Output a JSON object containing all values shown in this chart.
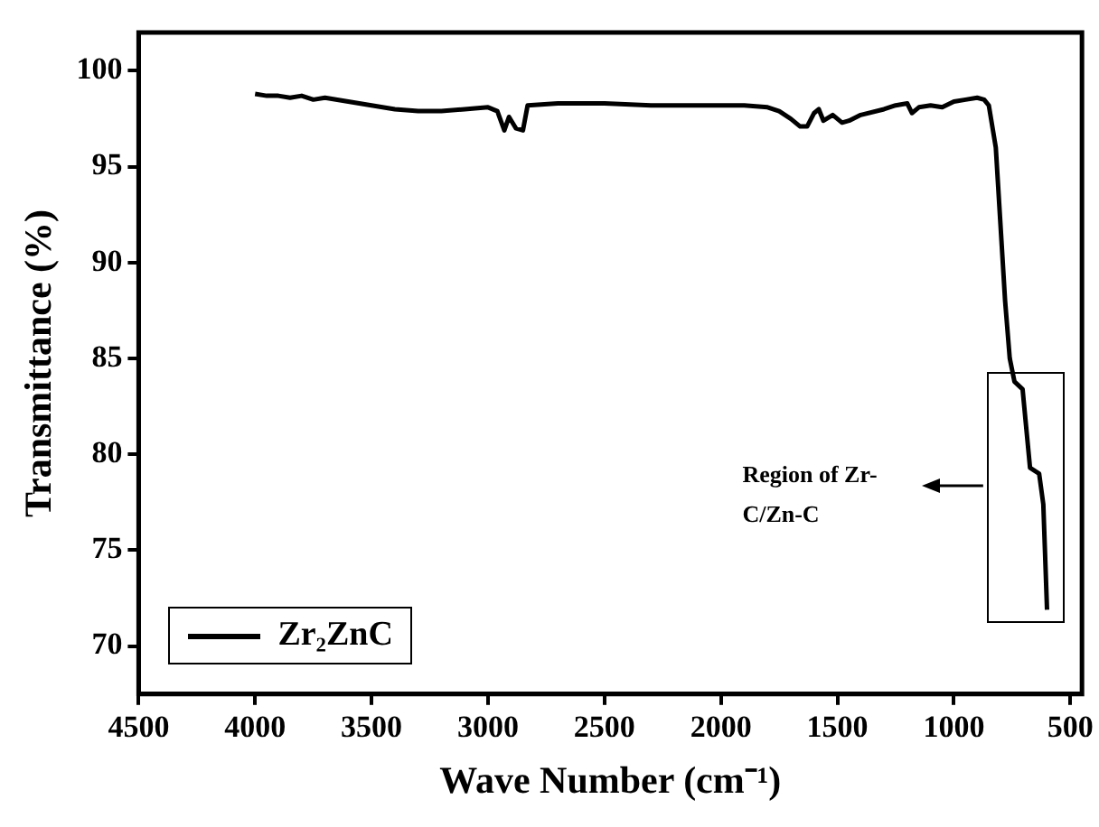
{
  "chart_data": {
    "type": "line",
    "xlabel": "Wave Number (cm⁻¹)",
    "ylabel": "Transmittance (%)",
    "xlim": [
      4500,
      450
    ],
    "xticks": [
      4500,
      4000,
      3500,
      3000,
      2500,
      2000,
      1500,
      1000,
      500
    ],
    "ylim": [
      67.5,
      102
    ],
    "yticks": [
      70,
      75,
      80,
      85,
      90,
      95,
      100
    ],
    "grid": false,
    "legend": "bottom left",
    "marker": "none",
    "line_style": "solid",
    "annotations": [
      "Region of Zr-C/Zn-C"
    ],
    "series": [
      {
        "name": "Zr₂ZnC",
        "color": "#000000",
        "x": [
          4000,
          3950,
          3900,
          3850,
          3800,
          3750,
          3700,
          3600,
          3500,
          3400,
          3300,
          3200,
          3100,
          3000,
          2960,
          2930,
          2910,
          2880,
          2850,
          2830,
          2700,
          2500,
          2300,
          2100,
          1900,
          1800,
          1750,
          1700,
          1660,
          1630,
          1600,
          1580,
          1560,
          1520,
          1480,
          1450,
          1400,
          1300,
          1250,
          1200,
          1180,
          1150,
          1100,
          1050,
          1000,
          950,
          900,
          870,
          850,
          820,
          800,
          780,
          760,
          740,
          705,
          673,
          634,
          616,
          600
        ],
        "values": [
          98.8,
          98.7,
          98.7,
          98.6,
          98.7,
          98.5,
          98.6,
          98.4,
          98.2,
          98.0,
          97.9,
          97.9,
          98.0,
          98.1,
          97.9,
          96.9,
          97.6,
          97.0,
          96.9,
          98.2,
          98.3,
          98.3,
          98.2,
          98.2,
          98.2,
          98.1,
          97.9,
          97.5,
          97.1,
          97.1,
          97.8,
          98.0,
          97.4,
          97.7,
          97.3,
          97.4,
          97.7,
          98.0,
          98.2,
          98.3,
          97.8,
          98.1,
          98.2,
          98.1,
          98.4,
          98.5,
          98.6,
          98.5,
          98.2,
          96.0,
          92.0,
          88.0,
          85.0,
          83.8,
          83.4,
          79.3,
          79.0,
          77.4,
          71.9
        ]
      }
    ]
  }
}
